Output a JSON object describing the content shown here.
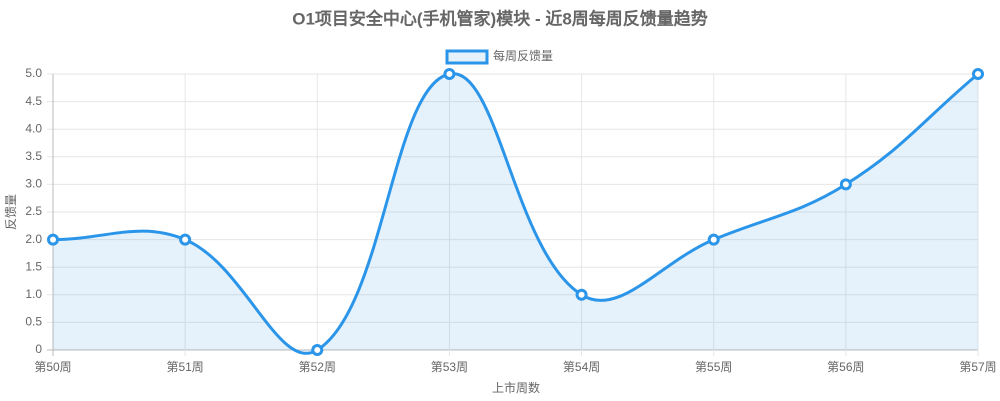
{
  "chart_data": {
    "type": "line",
    "title": "O1项目安全中心(手机管家)模块 - 近8周每周反馈量趋势",
    "x_label": "上市周数",
    "y_label": "反馈量",
    "categories": [
      "第50周",
      "第51周",
      "第52周",
      "第53周",
      "第54周",
      "第55周",
      "第56周",
      "第57周"
    ],
    "series": [
      {
        "name": "每周反馈量",
        "color": "#2b95e9",
        "values": [
          2,
          2,
          0,
          5,
          1,
          2,
          3,
          5
        ]
      }
    ],
    "ylim": [
      0,
      5
    ],
    "yticks": [
      0,
      0.5,
      {
        "value": 1,
        "label": "1.0"
      },
      1.5,
      {
        "value": 2,
        "label": "2.0"
      },
      2.5,
      {
        "value": 3,
        "label": "3.0"
      },
      3.5,
      {
        "value": 4,
        "label": "4.0"
      },
      4.5,
      {
        "value": 5,
        "label": "5.0"
      }
    ],
    "grid": true,
    "legend": "top",
    "smooth": true,
    "fill": true
  }
}
